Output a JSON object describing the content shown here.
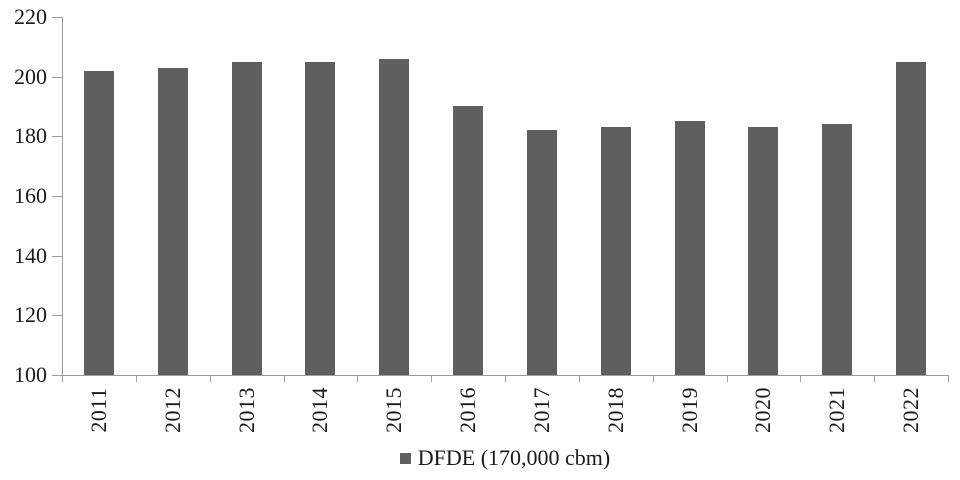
{
  "chart_data": {
    "type": "bar",
    "title": "",
    "xlabel": "",
    "ylabel": "",
    "categories": [
      "2011",
      "2012",
      "2013",
      "2014",
      "2015",
      "2016",
      "2017",
      "2018",
      "2019",
      "2020",
      "2021",
      "2022"
    ],
    "series": [
      {
        "name": "DFDE (170,000 cbm)",
        "values": [
          202,
          203,
          205,
          205,
          206,
          190,
          182,
          183,
          185,
          183,
          184,
          205
        ]
      }
    ],
    "ylim": [
      100,
      220
    ],
    "yticks": [
      100,
      120,
      140,
      160,
      180,
      200,
      220
    ],
    "grid": false,
    "legend_position": "bottom",
    "x_label_rotation": -90,
    "colors": {
      "bar": "#5f5f5f",
      "axis": "#9d9d9d",
      "text": "#1a1a1a",
      "background": "#ffffff"
    }
  },
  "legend": {
    "label": "DFDE (170,000 cbm)"
  }
}
